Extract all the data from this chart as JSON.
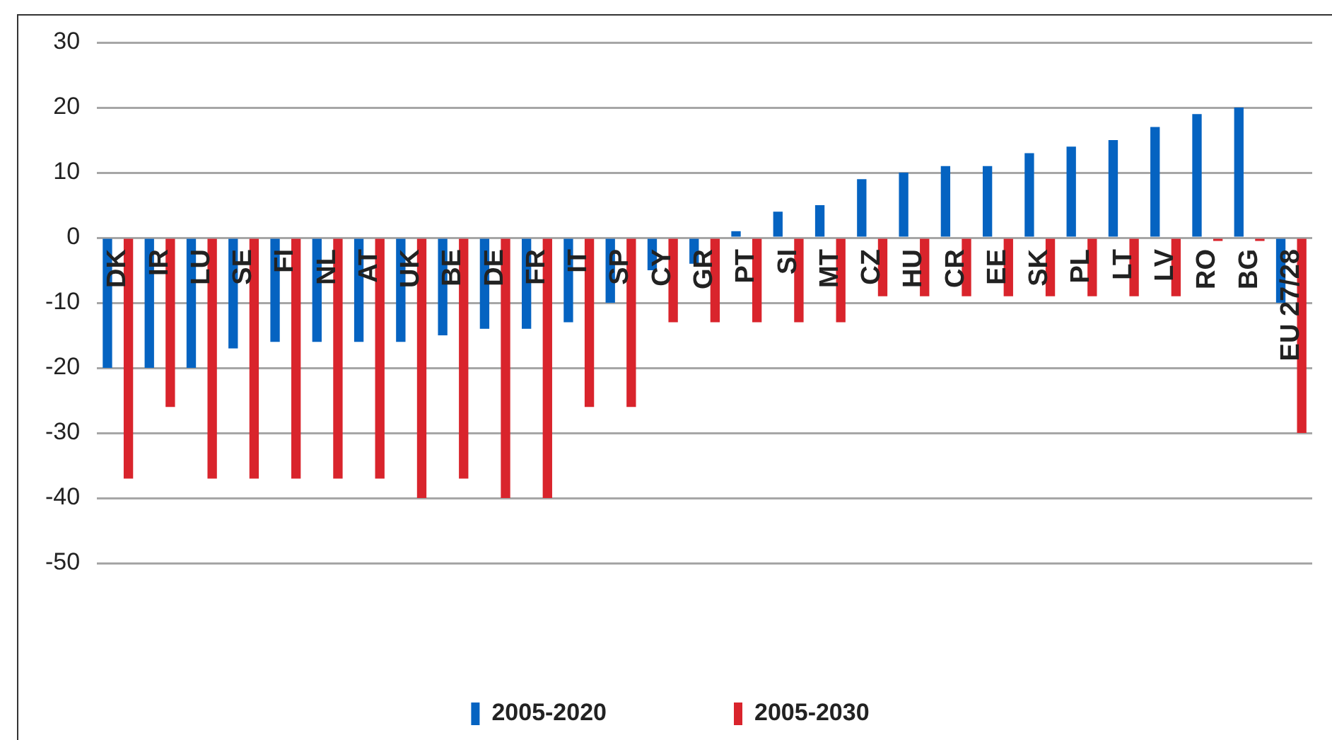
{
  "chart_data": {
    "type": "bar",
    "categories": [
      "DK",
      "IR",
      "LU",
      "SE",
      "FI",
      "NL",
      "AT",
      "UK",
      "BE",
      "DE",
      "FR",
      "IT",
      "SP",
      "CY",
      "GR",
      "PT",
      "SI",
      "MT",
      "CZ",
      "HU",
      "CR",
      "EE",
      "SK",
      "PL",
      "LT",
      "LV",
      "RO",
      "BG",
      "EU 27/28"
    ],
    "series": [
      {
        "name": "2005-2020",
        "color": "#0563c1",
        "values": [
          -20,
          -20,
          -20,
          -17,
          -16,
          -16,
          -16,
          -16,
          -15,
          -14,
          -14,
          -13,
          -10,
          -5,
          -4,
          1,
          4,
          5,
          9,
          10,
          11,
          11,
          13,
          14,
          15,
          17,
          19,
          20,
          -10
        ]
      },
      {
        "name": "2005-2030",
        "color": "#d9242c",
        "values": [
          -37,
          -26,
          -37,
          -37,
          -37,
          -37,
          -37,
          -40,
          -37,
          -40,
          -40,
          -26,
          -26,
          -13,
          -13,
          -13,
          -13,
          -13,
          -9,
          -9,
          -9,
          -9,
          -9,
          -9,
          -9,
          -9,
          -0.5,
          -0.5,
          -30
        ]
      }
    ],
    "ylim": [
      -50,
      30
    ],
    "yticks": [
      -50,
      -40,
      -30,
      -20,
      -10,
      0,
      10,
      20,
      30
    ],
    "grid": "y",
    "legend": "bottom"
  }
}
